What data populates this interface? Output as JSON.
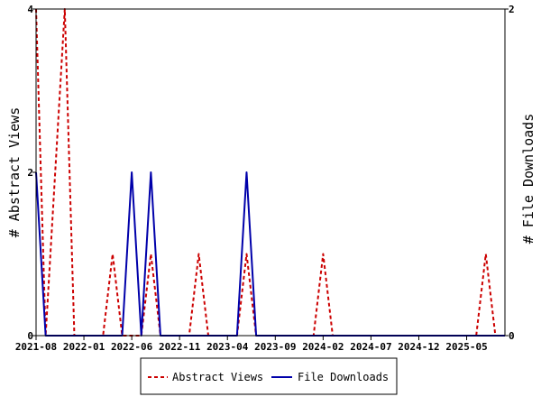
{
  "chart_data": {
    "type": "line",
    "title": "",
    "x_tick_labels": [
      "2021-08",
      "2022-01",
      "2022-06",
      "2022-11",
      "2023-04",
      "2023-09",
      "2024-02",
      "2024-07",
      "2024-12",
      "2025-05"
    ],
    "x_tick_months": [
      0,
      5,
      10,
      15,
      20,
      25,
      30,
      35,
      40,
      45
    ],
    "x_range_months": [
      0,
      49
    ],
    "y_left": {
      "label": "# Abstract Views",
      "range": [
        0,
        4
      ],
      "ticks": [
        0,
        2,
        4
      ],
      "tick_labels": [
        "0",
        "2",
        "4"
      ]
    },
    "y_right": {
      "label": "# File Downloads",
      "range": [
        0,
        2
      ],
      "ticks": [
        0,
        2
      ],
      "tick_labels": [
        "0",
        "2"
      ]
    },
    "legend_placement": "bottom-center",
    "series": [
      {
        "name": "Abstract Views",
        "axis": "left",
        "color": "#cc0000",
        "style": "dashed",
        "values": [
          [
            0,
            4
          ],
          [
            1,
            0
          ],
          [
            2,
            2
          ],
          [
            3,
            4
          ],
          [
            4,
            0
          ],
          [
            5,
            0
          ],
          [
            6,
            0
          ],
          [
            7,
            0
          ],
          [
            8,
            1
          ],
          [
            9,
            0
          ],
          [
            10,
            0
          ],
          [
            11,
            0
          ],
          [
            12,
            1
          ],
          [
            13,
            0
          ],
          [
            14,
            0
          ],
          [
            15,
            0
          ],
          [
            16,
            0
          ],
          [
            17,
            1
          ],
          [
            18,
            0
          ],
          [
            19,
            0
          ],
          [
            20,
            0
          ],
          [
            21,
            0
          ],
          [
            22,
            1
          ],
          [
            23,
            0
          ],
          [
            24,
            0
          ],
          [
            25,
            0
          ],
          [
            26,
            0
          ],
          [
            27,
            0
          ],
          [
            28,
            0
          ],
          [
            29,
            0
          ],
          [
            30,
            1
          ],
          [
            31,
            0
          ],
          [
            32,
            0
          ],
          [
            33,
            0
          ],
          [
            34,
            0
          ],
          [
            35,
            0
          ],
          [
            36,
            0
          ],
          [
            37,
            0
          ],
          [
            38,
            0
          ],
          [
            39,
            0
          ],
          [
            40,
            0
          ],
          [
            41,
            0
          ],
          [
            42,
            0
          ],
          [
            43,
            0
          ],
          [
            44,
            0
          ],
          [
            45,
            0
          ],
          [
            46,
            0
          ],
          [
            47,
            1
          ],
          [
            48,
            0
          ],
          [
            49,
            0
          ]
        ]
      },
      {
        "name": "File Downloads",
        "axis": "right",
        "color": "#0000aa",
        "style": "solid",
        "values": [
          [
            0,
            1
          ],
          [
            1,
            0
          ],
          [
            2,
            0
          ],
          [
            3,
            0
          ],
          [
            4,
            0
          ],
          [
            5,
            0
          ],
          [
            6,
            0
          ],
          [
            7,
            0
          ],
          [
            8,
            0
          ],
          [
            9,
            0
          ],
          [
            10,
            1
          ],
          [
            11,
            0
          ],
          [
            12,
            1
          ],
          [
            13,
            0
          ],
          [
            14,
            0
          ],
          [
            15,
            0
          ],
          [
            16,
            0
          ],
          [
            17,
            0
          ],
          [
            18,
            0
          ],
          [
            19,
            0
          ],
          [
            20,
            0
          ],
          [
            21,
            0
          ],
          [
            22,
            1
          ],
          [
            23,
            0
          ],
          [
            24,
            0
          ],
          [
            25,
            0
          ],
          [
            26,
            0
          ],
          [
            27,
            0
          ],
          [
            28,
            0
          ],
          [
            29,
            0
          ],
          [
            30,
            0
          ],
          [
            31,
            0
          ],
          [
            32,
            0
          ],
          [
            33,
            0
          ],
          [
            34,
            0
          ],
          [
            35,
            0
          ],
          [
            36,
            0
          ],
          [
            37,
            0
          ],
          [
            38,
            0
          ],
          [
            39,
            0
          ],
          [
            40,
            0
          ],
          [
            41,
            0
          ],
          [
            42,
            0
          ],
          [
            43,
            0
          ],
          [
            44,
            0
          ],
          [
            45,
            0
          ],
          [
            46,
            0
          ],
          [
            47,
            0
          ],
          [
            48,
            0
          ],
          [
            49,
            0
          ]
        ]
      }
    ]
  }
}
